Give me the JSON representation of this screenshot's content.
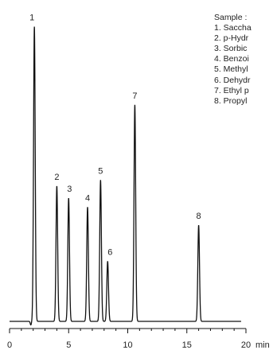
{
  "chart_data": {
    "type": "line",
    "title": "",
    "xlabel": "min",
    "ylabel": "",
    "xlim": [
      0,
      20
    ],
    "x_ticks": [
      "0",
      "5",
      "10",
      "15",
      "20"
    ],
    "grid": false,
    "peaks": [
      {
        "label": "1",
        "x": 2.1,
        "height": 0.98
      },
      {
        "label": "2",
        "x": 4.0,
        "height": 0.45
      },
      {
        "label": "3",
        "x": 5.0,
        "height": 0.41
      },
      {
        "label": "4",
        "x": 6.6,
        "height": 0.38
      },
      {
        "label": "5",
        "x": 7.7,
        "height": 0.47
      },
      {
        "label": "6",
        "x": 8.3,
        "height": 0.2
      },
      {
        "label": "7",
        "x": 10.6,
        "height": 0.72
      },
      {
        "label": "8",
        "x": 16.0,
        "height": 0.32
      }
    ],
    "legend": {
      "heading": "Sample :",
      "items": [
        "1. Saccha",
        "2. p-Hydr",
        "3. Sorbic",
        "4. Benzoi",
        "5. Methyl",
        "6. Dehydr",
        "7. Ethyl p",
        "8. Propyl"
      ],
      "position": "top-right"
    }
  }
}
